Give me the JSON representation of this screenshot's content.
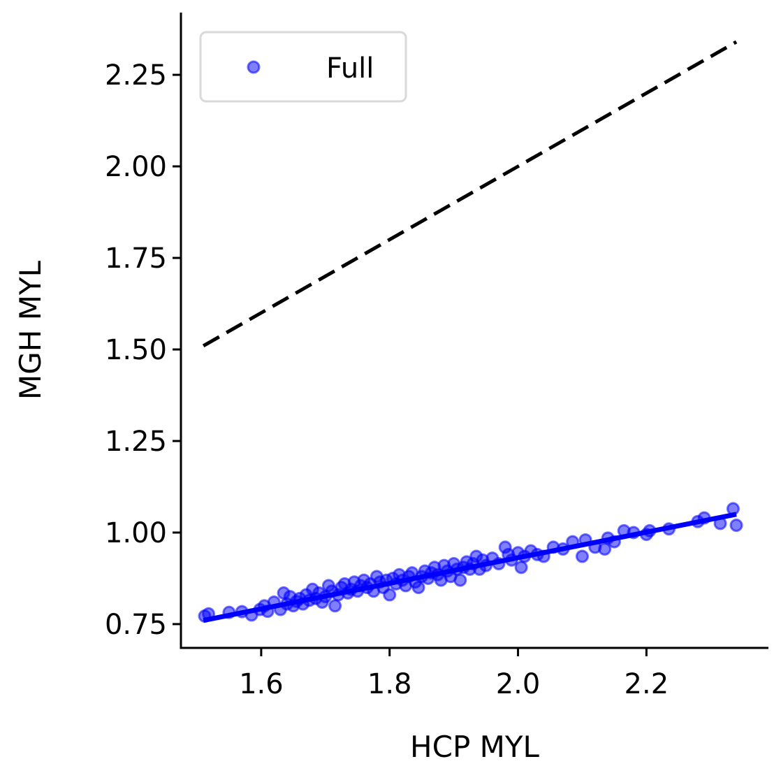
{
  "chart_data": {
    "type": "scatter",
    "xlabel": "HCP MYL",
    "ylabel": "MGH MYL",
    "xlim": [
      1.475,
      2.39
    ],
    "ylim": [
      0.685,
      2.42
    ],
    "x_ticks": [
      1.6,
      1.8,
      2.0,
      2.2
    ],
    "x_tick_labels": [
      "1.6",
      "1.8",
      "2.0",
      "2.2"
    ],
    "y_ticks": [
      0.75,
      1.0,
      1.25,
      1.5,
      1.75,
      2.0,
      2.25
    ],
    "y_tick_labels": [
      "0.75",
      "1.00",
      "1.25",
      "1.50",
      "1.75",
      "2.00",
      "2.25"
    ],
    "grid": false,
    "legend": {
      "position": "top-left",
      "entries": [
        {
          "label": "Full",
          "color": "#0000ff"
        }
      ]
    },
    "series": [
      {
        "name": "Full",
        "color": "#0000ff",
        "points": [
          [
            1.512,
            0.772
          ],
          [
            1.518,
            0.778
          ],
          [
            1.55,
            0.782
          ],
          [
            1.57,
            0.784
          ],
          [
            1.585,
            0.775
          ],
          [
            1.598,
            0.79
          ],
          [
            1.605,
            0.8
          ],
          [
            1.61,
            0.785
          ],
          [
            1.62,
            0.81
          ],
          [
            1.63,
            0.79
          ],
          [
            1.635,
            0.835
          ],
          [
            1.64,
            0.805
          ],
          [
            1.645,
            0.825
          ],
          [
            1.65,
            0.8
          ],
          [
            1.655,
            0.812
          ],
          [
            1.66,
            0.82
          ],
          [
            1.665,
            0.805
          ],
          [
            1.67,
            0.83
          ],
          [
            1.675,
            0.815
          ],
          [
            1.68,
            0.845
          ],
          [
            1.685,
            0.82
          ],
          [
            1.69,
            0.835
          ],
          [
            1.695,
            0.81
          ],
          [
            1.7,
            0.825
          ],
          [
            1.705,
            0.855
          ],
          [
            1.71,
            0.84
          ],
          [
            1.715,
            0.8
          ],
          [
            1.72,
            0.83
          ],
          [
            1.725,
            0.85
          ],
          [
            1.73,
            0.86
          ],
          [
            1.735,
            0.835
          ],
          [
            1.74,
            0.845
          ],
          [
            1.745,
            0.865
          ],
          [
            1.75,
            0.84
          ],
          [
            1.755,
            0.855
          ],
          [
            1.76,
            0.87
          ],
          [
            1.765,
            0.85
          ],
          [
            1.77,
            0.86
          ],
          [
            1.775,
            0.84
          ],
          [
            1.78,
            0.88
          ],
          [
            1.785,
            0.865
          ],
          [
            1.79,
            0.85
          ],
          [
            1.795,
            0.87
          ],
          [
            1.8,
            0.83
          ],
          [
            1.805,
            0.875
          ],
          [
            1.81,
            0.86
          ],
          [
            1.815,
            0.885
          ],
          [
            1.82,
            0.87
          ],
          [
            1.825,
            0.855
          ],
          [
            1.83,
            0.88
          ],
          [
            1.835,
            0.89
          ],
          [
            1.84,
            0.865
          ],
          [
            1.845,
            0.85
          ],
          [
            1.85,
            0.88
          ],
          [
            1.855,
            0.895
          ],
          [
            1.86,
            0.875
          ],
          [
            1.865,
            0.89
          ],
          [
            1.87,
            0.905
          ],
          [
            1.875,
            0.885
          ],
          [
            1.88,
            0.87
          ],
          [
            1.885,
            0.91
          ],
          [
            1.89,
            0.895
          ],
          [
            1.895,
            0.88
          ],
          [
            1.9,
            0.915
          ],
          [
            1.905,
            0.9
          ],
          [
            1.91,
            0.87
          ],
          [
            1.915,
            0.905
          ],
          [
            1.92,
            0.92
          ],
          [
            1.925,
            0.9
          ],
          [
            1.93,
            0.915
          ],
          [
            1.935,
            0.935
          ],
          [
            1.94,
            0.9
          ],
          [
            1.945,
            0.925
          ],
          [
            1.95,
            0.91
          ],
          [
            1.96,
            0.93
          ],
          [
            1.97,
            0.915
          ],
          [
            1.98,
            0.96
          ],
          [
            1.985,
            0.94
          ],
          [
            1.99,
            0.925
          ],
          [
            2.0,
            0.945
          ],
          [
            2.005,
            0.905
          ],
          [
            2.01,
            0.935
          ],
          [
            2.02,
            0.95
          ],
          [
            2.03,
            0.94
          ],
          [
            2.04,
            0.935
          ],
          [
            2.055,
            0.96
          ],
          [
            2.07,
            0.955
          ],
          [
            2.085,
            0.975
          ],
          [
            2.1,
            0.935
          ],
          [
            2.105,
            0.98
          ],
          [
            2.12,
            0.96
          ],
          [
            2.135,
            0.955
          ],
          [
            2.14,
            0.985
          ],
          [
            2.15,
            0.975
          ],
          [
            2.165,
            1.005
          ],
          [
            2.18,
            1.0
          ],
          [
            2.2,
            0.995
          ],
          [
            2.205,
            1.005
          ],
          [
            2.235,
            1.01
          ],
          [
            2.28,
            1.03
          ],
          [
            2.29,
            1.04
          ],
          [
            2.315,
            1.025
          ],
          [
            2.335,
            1.065
          ],
          [
            2.34,
            1.02
          ]
        ]
      }
    ],
    "fit_line": {
      "color": "#0000ff",
      "x": [
        1.51,
        2.34
      ],
      "y": [
        0.76,
        1.05
      ]
    },
    "reference_line": {
      "color": "#000000",
      "style": "dashed",
      "x": [
        1.51,
        2.34
      ],
      "y": [
        1.51,
        2.34
      ]
    }
  }
}
